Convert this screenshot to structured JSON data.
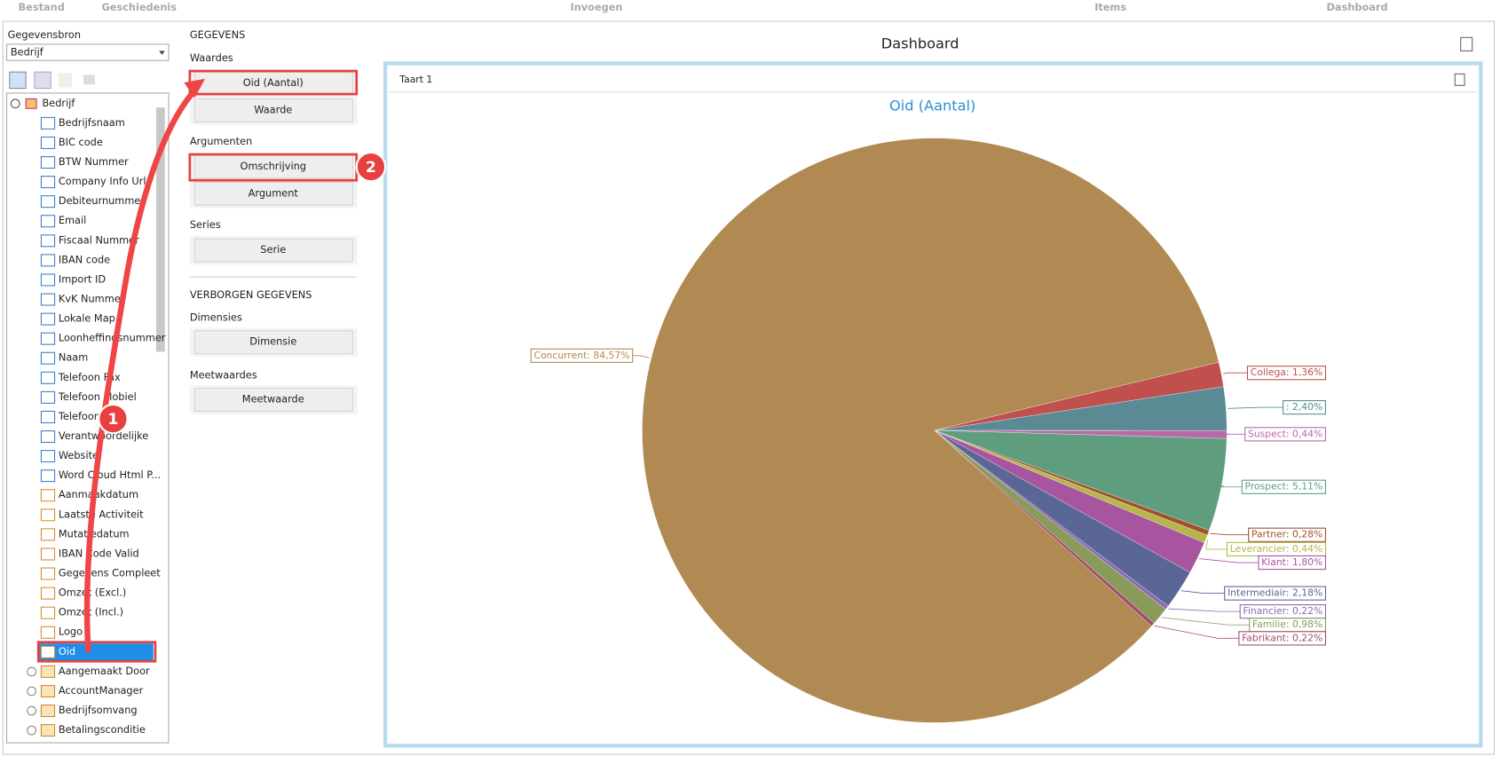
{
  "menu": [
    "Bestand",
    "Geschiedenis",
    "Invoegen",
    "Items",
    "Dashboard"
  ],
  "datasource": {
    "label": "Gegevensbron",
    "value": "Bedrijf"
  },
  "tree": {
    "root": "Bedrijf",
    "fields": [
      "Bedrijfsnaam",
      "BIC code",
      "BTW Nummer",
      "Company Info Url",
      "Debiteurnummer",
      "Email",
      "Fiscaal Nummer",
      "IBAN code",
      "Import ID",
      "KvK Nummer",
      "Lokale Map",
      "Loonheffingsnummer",
      "Naam",
      "Telefoon Fax",
      "Telefoon Mobiel",
      "Telefoon Vast",
      "Verantwoordelijke",
      "Website",
      "Word Cloud Html P...",
      "Aanmaakdatum",
      "Laatste Activiteit",
      "Mutatiedatum",
      "IBAN Code Valid",
      "Gegevens Compleet",
      "Omzet (Excl.)",
      "Omzet (Incl.)",
      "Logo",
      "Oid"
    ],
    "tables": [
      "Aangemaakt Door",
      "AccountManager",
      "Bedrijfsomvang",
      "Betalingsconditie"
    ]
  },
  "binding": {
    "title": "GEGEVENS",
    "sections": [
      {
        "name": "Waardes",
        "items": [
          "Oid (Aantal)",
          "Waarde"
        ]
      },
      {
        "name": "Argumenten",
        "items": [
          "Omschrijving",
          "Argument"
        ]
      },
      {
        "name": "Series",
        "items": [
          "Serie"
        ]
      }
    ],
    "hidden_title": "VERBORGEN GEGEVENS",
    "hidden_sections": [
      {
        "name": "Dimensies",
        "items": [
          "Dimensie"
        ]
      },
      {
        "name": "Meetwaardes",
        "items": [
          "Meetwaarde"
        ]
      }
    ]
  },
  "dashboard": {
    "title": "Dashboard",
    "item_title": "Taart 1"
  },
  "callouts": [
    "1",
    "2"
  ],
  "chart_data": {
    "type": "pie",
    "title": "Oid (Aantal)",
    "categories": [
      "Collega",
      null,
      "Suspect",
      "Prospect",
      "Partner",
      "Leverancier",
      "Klant",
      "Intermediair",
      "Financier",
      "Familie",
      "Fabrikant",
      "Concurrent"
    ],
    "values": [
      1.36,
      2.4,
      0.44,
      5.11,
      0.28,
      0.44,
      1.8,
      2.18,
      0.22,
      0.98,
      0.22,
      84.57
    ],
    "value_labels": [
      "Collega: 1,36%",
      ": 2,40%",
      "Suspect: 0,44%",
      "Prospect: 5,11%",
      "Partner: 0,28%",
      "Leverancier: 0,44%",
      "Klant: 1,80%",
      "Intermediair: 2,18%",
      "Financier: 0,22%",
      "Familie: 0,98%",
      "Fabrikant: 0,22%",
      "Concurrent: 84,57%"
    ],
    "colors": [
      "#c0504d",
      "#5a8a94",
      "#b86aa8",
      "#5e9e7e",
      "#a0522d",
      "#b5b54a",
      "#a855a0",
      "#5a6696",
      "#8a6ab0",
      "#8a9a5a",
      "#a0506a",
      "#b08a52"
    ],
    "start_angle": -13.5
  }
}
